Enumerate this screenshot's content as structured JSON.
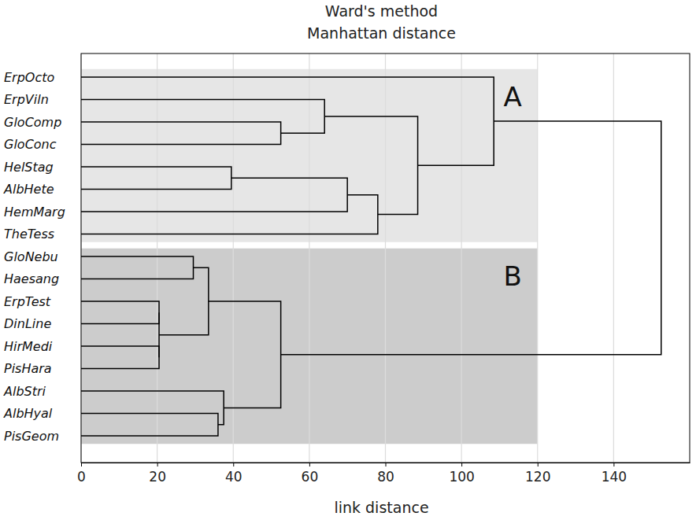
{
  "chart_data": {
    "type": "dendrogram",
    "title": "Ward's method",
    "subtitle": "Manhattan distance",
    "xlabel": "link distance",
    "xlim": [
      0,
      160
    ],
    "xticks": [
      0,
      20,
      40,
      60,
      80,
      100,
      120,
      140
    ],
    "grid": true,
    "color": "#000000",
    "leaves": [
      "ErpOcto",
      "ErpViln",
      "GloComp",
      "GloConc",
      "HelStag",
      "AlbHete",
      "HemMarg",
      "TheTess",
      "GloNebu",
      "Haesang",
      "ErpTest",
      "DinLine",
      "HirMedi",
      "PisHara",
      "AlbStri",
      "AlbHyal",
      "PisGeom"
    ],
    "merges": [
      {
        "children": [
          2,
          3
        ],
        "height": 52.5
      },
      {
        "children": [
          1,
          17
        ],
        "height": 64
      },
      {
        "children": [
          4,
          5
        ],
        "height": 39.5
      },
      {
        "children": [
          19,
          6
        ],
        "height": 70
      },
      {
        "children": [
          20,
          7
        ],
        "height": 78
      },
      {
        "children": [
          18,
          21
        ],
        "height": 88.5
      },
      {
        "children": [
          0,
          22
        ],
        "height": 108.5
      },
      {
        "children": [
          8,
          9
        ],
        "height": 29.5
      },
      {
        "children": [
          10,
          11
        ],
        "height": 20.5
      },
      {
        "children": [
          12,
          13
        ],
        "height": 20.5
      },
      {
        "children": [
          25,
          26
        ],
        "height": 20.5
      },
      {
        "children": [
          24,
          27
        ],
        "height": 33.5
      },
      {
        "children": [
          15,
          16
        ],
        "height": 36
      },
      {
        "children": [
          14,
          29
        ],
        "height": 37.5
      },
      {
        "children": [
          28,
          30
        ],
        "height": 52.5
      },
      {
        "children": [
          23,
          31
        ],
        "height": 152.5
      }
    ],
    "groups": [
      {
        "label": "A",
        "leaves": [
          0,
          7
        ],
        "extent": 120,
        "color": "#e6e6e6"
      },
      {
        "label": "B",
        "leaves": [
          8,
          16
        ],
        "extent": 120,
        "color": "#cccccc"
      }
    ]
  }
}
